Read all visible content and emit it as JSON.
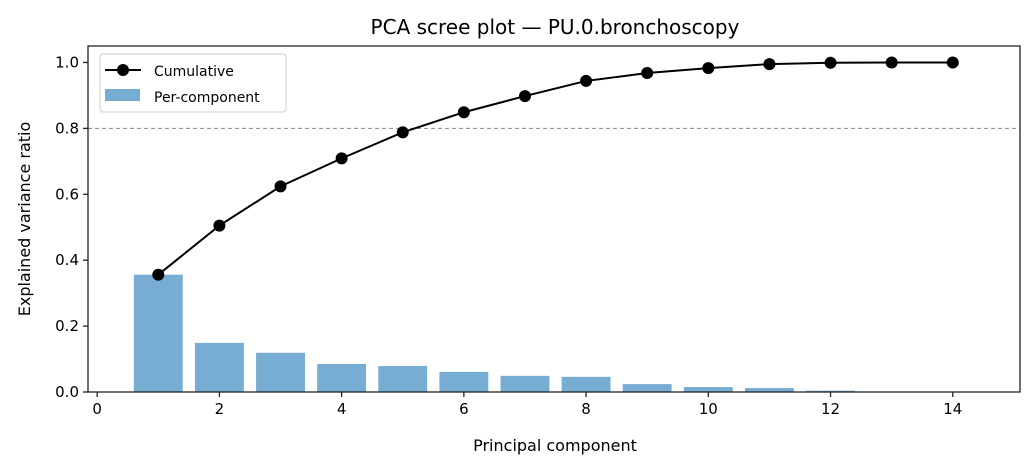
{
  "chart_data": {
    "type": "bar+line",
    "title": "PCA scree plot — PU.0.bronchoscopy",
    "xlabel": "Principal component",
    "ylabel": "Explained variance ratio",
    "xlim": [
      -0.15,
      15.1
    ],
    "ylim": [
      0,
      1.05
    ],
    "xticks": [
      0,
      2,
      4,
      6,
      8,
      10,
      12,
      14
    ],
    "yticks": [
      0.0,
      0.2,
      0.4,
      0.6,
      0.8,
      1.0
    ],
    "ytick_labels": [
      "0.0",
      "0.2",
      "0.4",
      "0.6",
      "0.8",
      "1.0"
    ],
    "grid": false,
    "legend_position": "top-left",
    "components": [
      1,
      2,
      3,
      4,
      5,
      6,
      7,
      8,
      9,
      10,
      11,
      12,
      13,
      14
    ],
    "series": [
      {
        "name": "Cumulative",
        "type": "line",
        "color": "#000000",
        "marker": "circle",
        "values": [
          0.356,
          0.505,
          0.624,
          0.709,
          0.788,
          0.849,
          0.898,
          0.944,
          0.968,
          0.983,
          0.995,
          0.999,
          1.0,
          1.0
        ]
      },
      {
        "name": "Per-component",
        "type": "bar",
        "color": "#77acd3",
        "values": [
          0.356,
          0.149,
          0.119,
          0.085,
          0.079,
          0.061,
          0.049,
          0.046,
          0.024,
          0.015,
          0.012,
          0.004,
          0.001,
          0.0
        ]
      }
    ],
    "reference_line": {
      "y": 0.8,
      "style": "dashed",
      "color": "#888888"
    }
  }
}
